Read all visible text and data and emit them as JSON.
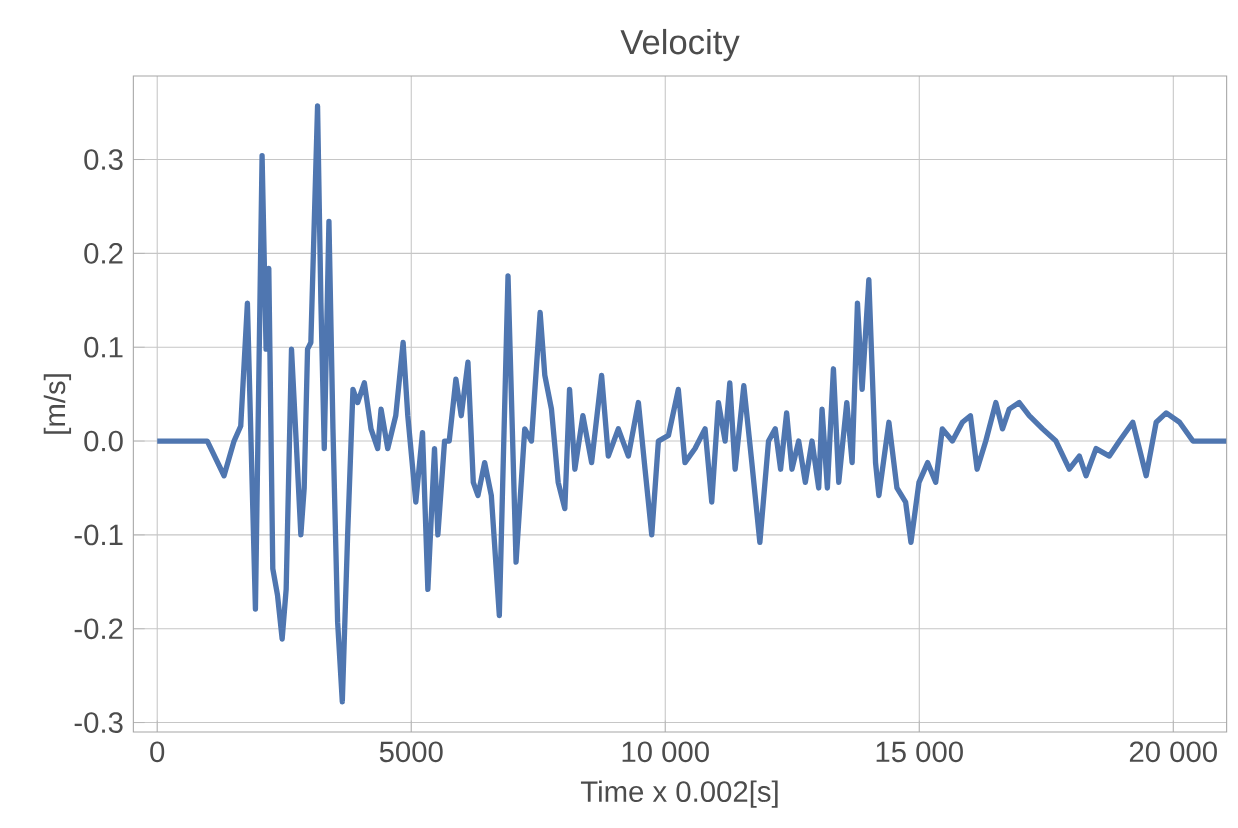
{
  "chart_data": {
    "type": "line",
    "title": "Velocity",
    "xlabel": "Time x 0.002[s]",
    "ylabel": "[m/s]",
    "xlim": [
      -470,
      21050
    ],
    "ylim": [
      -0.31,
      0.389
    ],
    "xticks": [
      0,
      5000,
      {
        "value": 10000,
        "label": "10 000"
      },
      {
        "value": 15000,
        "label": "15 000"
      },
      {
        "value": 20000,
        "label": "20 000"
      }
    ],
    "yticks": [
      -0.3,
      -0.2,
      -0.1,
      {
        "value": 0,
        "label": "0.0"
      },
      0.1,
      0.2,
      0.3
    ],
    "grid": true,
    "series": [
      {
        "color": "#4f76b0",
        "x": [
          0,
          986,
          1315,
          1512,
          1644,
          1775,
          1933,
          2064,
          2143,
          2196,
          2275,
          2367,
          2459,
          2538,
          2643,
          2735,
          2827,
          2893,
          2959,
          3024,
          3156,
          3222,
          3288,
          3380,
          3459,
          3551,
          3643,
          3748,
          3853,
          3945,
          4077,
          4208,
          4340,
          4406,
          4537,
          4695,
          4840,
          4932,
          5090,
          5222,
          5327,
          5458,
          5524,
          5656,
          5748,
          5879,
          5984,
          6116,
          6221,
          6313,
          6445,
          6576,
          6734,
          6905,
          7063,
          7234,
          7366,
          7537,
          7629,
          7760,
          7892,
          8023,
          8116,
          8221,
          8379,
          8550,
          8747,
          8879,
          9076,
          9274,
          9471,
          9602,
          9734,
          9865,
          10063,
          10257,
          10388,
          10586,
          10783,
          10915,
          11046,
          11178,
          11270,
          11375,
          11546,
          11704,
          11862,
          12033,
          12165,
          12270,
          12389,
          12494,
          12626,
          12757,
          12889,
          13020,
          13086,
          13191,
          13310,
          13415,
          13573,
          13678,
          13783,
          13875,
          14007,
          14139,
          14205,
          14402,
          14560,
          14731,
          14836,
          14994,
          15165,
          15323,
          15454,
          15652,
          15849,
          16007,
          16138,
          16309,
          16507,
          16638,
          16770,
          16967,
          17164,
          17427,
          17690,
          17953,
          18151,
          18282,
          18479,
          18742,
          18940,
          19203,
          19466,
          19663,
          19860,
          20123,
          20386,
          21044
        ],
        "values": [
          0,
          0,
          -0.037,
          0,
          0.016,
          0.147,
          -0.179,
          0.304,
          0.098,
          0.184,
          -0.136,
          -0.164,
          -0.211,
          -0.158,
          0.098,
          0,
          -0.1,
          -0.05,
          0.098,
          0.105,
          0.357,
          0.147,
          -0.008,
          0.234,
          0.013,
          -0.193,
          -0.278,
          -0.1,
          0.055,
          0.041,
          0.062,
          0.013,
          -0.008,
          0.034,
          -0.008,
          0.027,
          0.105,
          0.027,
          -0.065,
          0.009,
          -0.158,
          -0.008,
          -0.1,
          0,
          0,
          0.066,
          0.027,
          0.084,
          -0.044,
          -0.058,
          -0.023,
          -0.058,
          -0.186,
          0.176,
          -0.129,
          0.013,
          0,
          0.137,
          0.07,
          0.034,
          -0.044,
          -0.072,
          0.055,
          -0.03,
          0.027,
          -0.023,
          0.07,
          -0.016,
          0.013,
          -0.016,
          0.041,
          -0.03,
          -0.1,
          0,
          0.006,
          0.055,
          -0.023,
          -0.008,
          0.013,
          -0.065,
          0.041,
          0,
          0.062,
          -0.03,
          0.059,
          -0.023,
          -0.108,
          0,
          0.013,
          -0.03,
          0.03,
          -0.03,
          0,
          -0.044,
          0,
          -0.05,
          0.034,
          -0.05,
          0.077,
          -0.044,
          0.041,
          -0.023,
          0.147,
          0.055,
          0.172,
          -0.023,
          -0.058,
          0.02,
          -0.05,
          -0.065,
          -0.108,
          -0.044,
          -0.023,
          -0.044,
          0.013,
          0,
          0.02,
          0.027,
          -0.03,
          0,
          0.041,
          0.013,
          0.034,
          0.041,
          0.027,
          0.013,
          0,
          -0.03,
          -0.016,
          -0.037,
          -0.008,
          -0.016,
          0,
          0.02,
          -0.037,
          0.02,
          0.03,
          0.02,
          0,
          0
        ]
      }
    ]
  }
}
